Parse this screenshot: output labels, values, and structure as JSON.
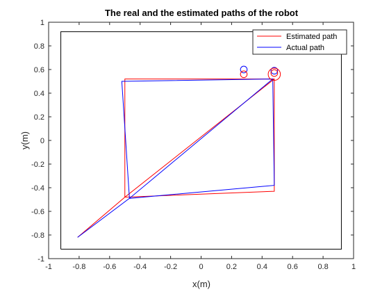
{
  "chart_data": {
    "type": "line",
    "title": "The real and the estimated paths of the robot",
    "xlabel": "x(m)",
    "ylabel": "y(m)",
    "xlim": [
      -1,
      1
    ],
    "ylim": [
      -1,
      1
    ],
    "xticks": [
      "-1",
      "-0.8",
      "-0.6",
      "-0.4",
      "-0.2",
      "0",
      "0.2",
      "0.4",
      "0.6",
      "0.8",
      "1"
    ],
    "yticks": [
      "-1",
      "-0.8",
      "-0.6",
      "-0.4",
      "-0.2",
      "0",
      "0.2",
      "0.4",
      "0.6",
      "0.8",
      "1"
    ],
    "xtick_values": [
      -1,
      -0.8,
      -0.6,
      -0.4,
      -0.2,
      0,
      0.2,
      0.4,
      0.6,
      0.8,
      1
    ],
    "ytick_values": [
      -1,
      -0.8,
      -0.6,
      -0.4,
      -0.2,
      0,
      0.2,
      0.4,
      0.6,
      0.8,
      1
    ],
    "grid": false,
    "legend_position": "top-right",
    "boundary": {
      "color": "#000000",
      "x": [
        -0.92,
        0.92,
        0.92,
        -0.92,
        -0.92
      ],
      "y": [
        -0.92,
        -0.92,
        0.92,
        0.92,
        -0.92
      ]
    },
    "series": [
      {
        "name": "Estimated path",
        "color": "#ff0000",
        "x": [
          -0.81,
          -0.5,
          -0.5,
          0.48,
          0.48,
          -0.5,
          0.48
        ],
        "y": [
          -0.82,
          -0.48,
          0.52,
          0.52,
          -0.43,
          -0.48,
          0.52
        ]
      },
      {
        "name": "Actual path",
        "color": "#0000ff",
        "x": [
          -0.81,
          -0.47,
          -0.52,
          0.47,
          0.48,
          -0.47,
          0.47
        ],
        "y": [
          -0.82,
          -0.49,
          0.5,
          0.52,
          -0.38,
          -0.49,
          0.52
        ]
      }
    ],
    "markers": [
      {
        "color": "#0000ff",
        "x": 0.28,
        "y": 0.6,
        "r": 0.022
      },
      {
        "color": "#ff0000",
        "x": 0.28,
        "y": 0.56,
        "r": 0.022
      },
      {
        "color": "#0000ff",
        "x": 0.48,
        "y": 0.59,
        "r": 0.022
      },
      {
        "color": "#ff0000",
        "x": 0.48,
        "y": 0.57,
        "r": 0.022
      },
      {
        "color": "#ff0000",
        "x": 0.48,
        "y": 0.56,
        "r": 0.04
      }
    ]
  }
}
